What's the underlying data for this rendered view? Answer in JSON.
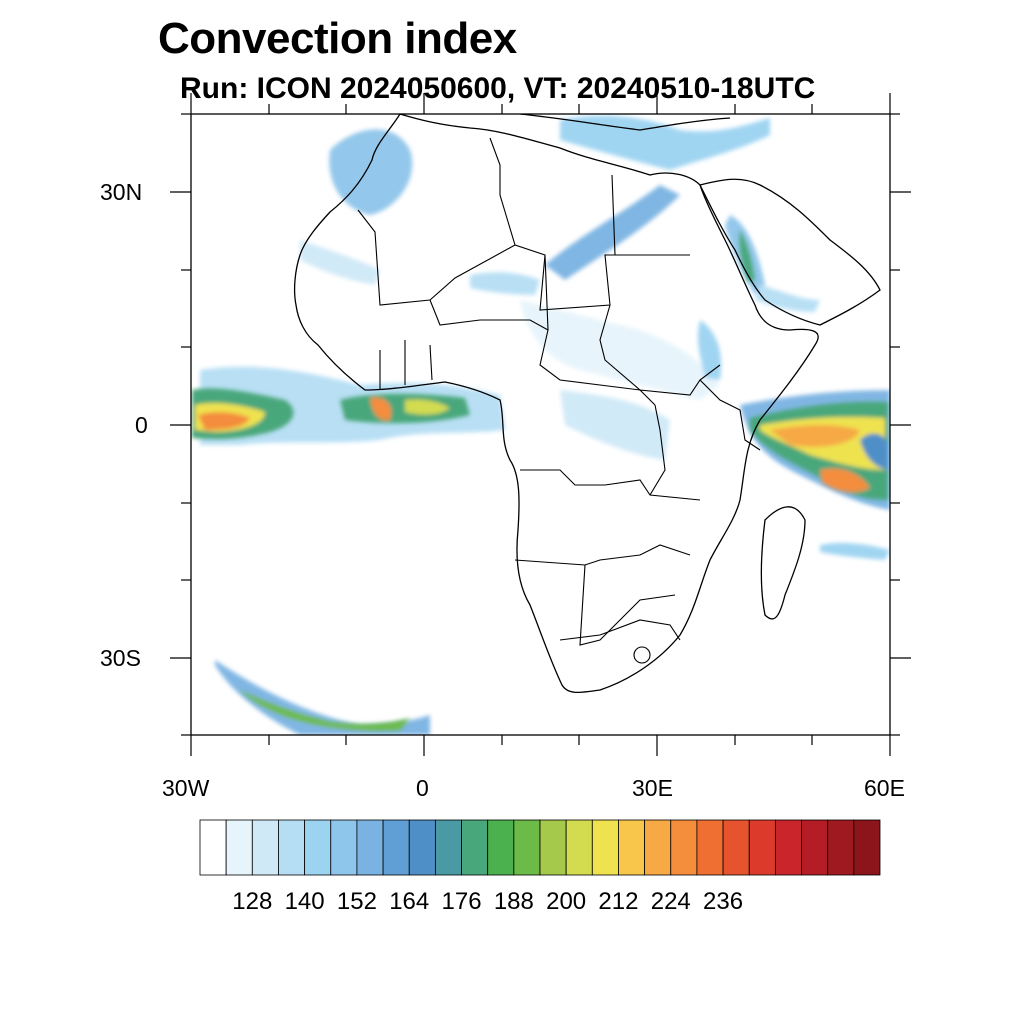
{
  "title": "Convection index",
  "subtitle": "Run: ICON 2024050600,  VT: 20240510-18UTC",
  "map": {
    "extent": {
      "lon_min": -30,
      "lon_max": 60,
      "lat_min": -40,
      "lat_max": 40
    },
    "lat_ticks": [
      "30N",
      "0",
      "30S"
    ],
    "lon_ticks": [
      "30W",
      "0",
      "30E",
      "60E"
    ]
  },
  "colorbar": {
    "colors": [
      "#ffffff",
      "#e6f4fb",
      "#cfe9f7",
      "#b5def4",
      "#9bd3f1",
      "#8ec5ea",
      "#7ab3e2",
      "#5f9fd6",
      "#4f8fc8",
      "#4a9aa6",
      "#48a77b",
      "#4bb04e",
      "#6cbb48",
      "#a5c94a",
      "#d3dc4f",
      "#efe24f",
      "#f7c64a",
      "#f6a944",
      "#f48d3c",
      "#ef6f33",
      "#e5542d",
      "#dc3b2b",
      "#c9252b",
      "#b41c26",
      "#9f1a20",
      "#8b151b"
    ],
    "tick_labels": [
      "128",
      "140",
      "152",
      "164",
      "176",
      "188",
      "200",
      "212",
      "224",
      "236"
    ]
  }
}
